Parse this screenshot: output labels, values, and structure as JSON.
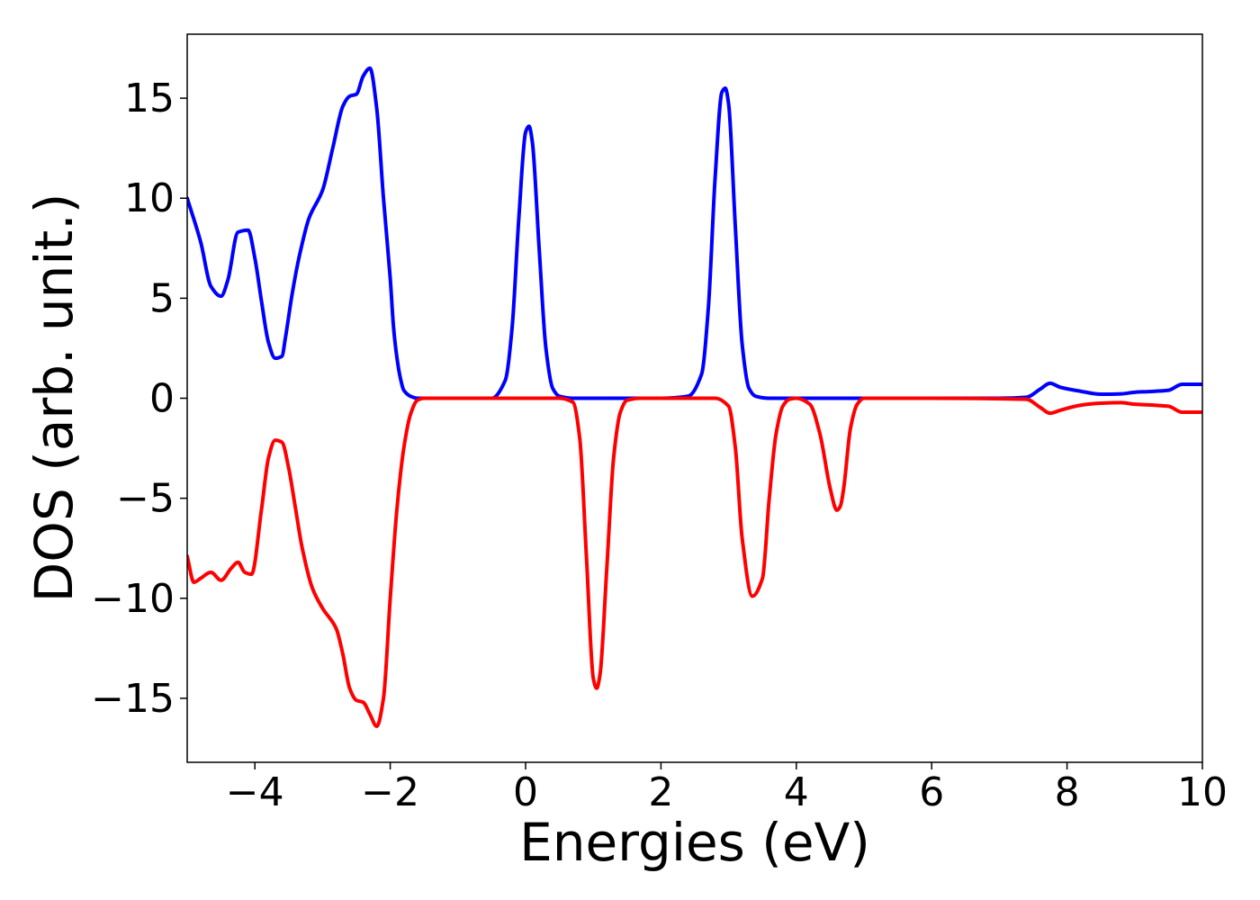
{
  "chart_data": {
    "type": "line",
    "title": "",
    "xlabel": "Energies (eV)",
    "ylabel": "DOS (arb. unit.)",
    "xlim": [
      -5,
      10
    ],
    "ylim": [
      -18.2,
      18.2
    ],
    "grid": false,
    "legend": "none",
    "xticks": [
      {
        "value": -4,
        "label": "−4"
      },
      {
        "value": -2,
        "label": "−2"
      },
      {
        "value": 0,
        "label": "0"
      },
      {
        "value": 2,
        "label": "2"
      },
      {
        "value": 4,
        "label": "4"
      },
      {
        "value": 6,
        "label": "6"
      },
      {
        "value": 8,
        "label": "8"
      },
      {
        "value": 10,
        "label": "10"
      }
    ],
    "yticks": [
      {
        "value": 15,
        "label": "15"
      },
      {
        "value": 10,
        "label": "10"
      },
      {
        "value": 5,
        "label": "5"
      },
      {
        "value": 0,
        "label": "0"
      },
      {
        "value": -5,
        "label": "−5"
      },
      {
        "value": -10,
        "label": "−10"
      },
      {
        "value": -15,
        "label": "−15"
      }
    ],
    "series": [
      {
        "color": "#0000ff",
        "x": [
          -5.0,
          -4.8,
          -4.65,
          -4.5,
          -4.4,
          -4.25,
          -4.1,
          -4.0,
          -3.9,
          -3.8,
          -3.7,
          -3.6,
          -3.55,
          -3.45,
          -3.35,
          -3.2,
          -3.0,
          -2.85,
          -2.7,
          -2.6,
          -2.5,
          -2.4,
          -2.3,
          -2.2,
          -2.1,
          -2.0,
          -1.95,
          -1.9,
          -1.85,
          -1.8,
          -1.7,
          -1.6,
          -1.5,
          -1.0,
          -0.5,
          -0.3,
          -0.2,
          -0.1,
          0.0,
          0.05,
          0.1,
          0.2,
          0.3,
          0.4,
          0.5,
          0.7,
          1.0,
          2.0,
          2.4,
          2.6,
          2.7,
          2.8,
          2.9,
          2.95,
          3.0,
          3.1,
          3.2,
          3.3,
          3.4,
          3.6,
          4.0,
          5.0,
          6.0,
          7.0,
          7.4,
          7.6,
          7.75,
          7.9,
          8.2,
          8.5,
          8.8,
          9.0,
          9.3,
          9.5,
          9.7,
          10.0
        ],
        "y": [
          10.0,
          7.8,
          5.6,
          5.1,
          5.9,
          8.3,
          8.4,
          7.0,
          4.8,
          2.8,
          2.0,
          2.1,
          3.0,
          5.2,
          7.0,
          9.0,
          10.4,
          12.5,
          14.6,
          15.1,
          15.2,
          16.1,
          16.5,
          14.5,
          10.0,
          6.0,
          3.5,
          2.0,
          1.0,
          0.4,
          0.1,
          0.0,
          0.0,
          0.0,
          0.0,
          0.9,
          3.5,
          9.0,
          13.3,
          13.6,
          12.8,
          7.5,
          2.5,
          0.5,
          0.1,
          0.0,
          0.0,
          0.0,
          0.1,
          1.2,
          4.5,
          11.0,
          15.3,
          15.5,
          14.7,
          8.5,
          2.7,
          0.5,
          0.1,
          0.0,
          0.0,
          0.0,
          0.0,
          0.0,
          0.05,
          0.45,
          0.75,
          0.55,
          0.35,
          0.2,
          0.22,
          0.3,
          0.35,
          0.4,
          0.7,
          0.7
        ]
      },
      {
        "color": "#ff0000",
        "x": [
          -5.0,
          -4.9,
          -4.8,
          -4.65,
          -4.5,
          -4.35,
          -4.25,
          -4.15,
          -4.05,
          -3.9,
          -3.8,
          -3.7,
          -3.6,
          -3.5,
          -3.4,
          -3.3,
          -3.15,
          -3.0,
          -2.8,
          -2.7,
          -2.6,
          -2.5,
          -2.4,
          -2.3,
          -2.2,
          -2.1,
          -2.0,
          -1.9,
          -1.8,
          -1.7,
          -1.6,
          -1.5,
          -1.0,
          0.0,
          0.5,
          0.7,
          0.8,
          0.9,
          1.0,
          1.05,
          1.1,
          1.2,
          1.3,
          1.4,
          1.5,
          1.7,
          2.0,
          2.8,
          3.0,
          3.1,
          3.2,
          3.35,
          3.5,
          3.6,
          3.7,
          3.8,
          3.9,
          4.0,
          4.2,
          4.35,
          4.5,
          4.6,
          4.65,
          4.7,
          4.8,
          4.9,
          5.0,
          6.0,
          7.4,
          7.6,
          7.75,
          7.9,
          8.2,
          8.5,
          8.8,
          9.0,
          9.3,
          9.5,
          9.7,
          10.0
        ],
        "y": [
          -7.9,
          -9.2,
          -9.0,
          -8.7,
          -9.1,
          -8.5,
          -8.2,
          -8.7,
          -8.8,
          -5.5,
          -3.0,
          -2.1,
          -2.2,
          -3.5,
          -5.5,
          -7.5,
          -9.5,
          -10.5,
          -11.5,
          -12.8,
          -14.5,
          -15.1,
          -15.2,
          -15.8,
          -16.4,
          -15.0,
          -10.0,
          -5.5,
          -2.5,
          -0.8,
          -0.1,
          0.0,
          0.0,
          0.0,
          0.0,
          -0.2,
          -2.0,
          -8.0,
          -14.0,
          -14.5,
          -13.8,
          -8.5,
          -3.0,
          -0.7,
          -0.1,
          0.0,
          0.0,
          0.0,
          -0.4,
          -2.5,
          -7.0,
          -9.9,
          -9.0,
          -5.0,
          -1.8,
          -0.4,
          -0.05,
          0.0,
          -0.3,
          -1.8,
          -4.5,
          -5.6,
          -5.4,
          -4.5,
          -1.5,
          -0.3,
          0.0,
          0.0,
          -0.05,
          -0.45,
          -0.75,
          -0.6,
          -0.35,
          -0.25,
          -0.22,
          -0.3,
          -0.35,
          -0.4,
          -0.7,
          -0.7
        ]
      }
    ]
  }
}
